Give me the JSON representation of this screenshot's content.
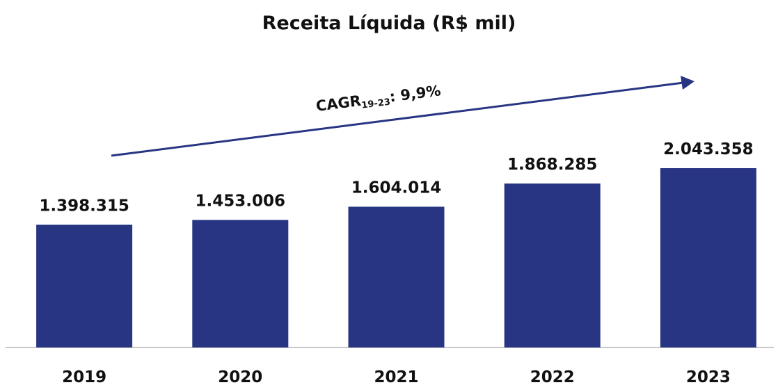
{
  "chart_data": {
    "type": "bar",
    "title": "Receita Líquida (R$ mil)",
    "categories": [
      "2019",
      "2020",
      "2021",
      "2022",
      "2023"
    ],
    "values": [
      1398315,
      1453006,
      1604014,
      1868285,
      2043358
    ],
    "value_labels": [
      "1.398.315",
      "1.453.006",
      "1.604.014",
      "1.868.285",
      "2.043.358"
    ],
    "color": "#283583",
    "annotation": {
      "text": "CAGR",
      "subscript": "19-23",
      "suffix": ": 9,9%"
    }
  }
}
